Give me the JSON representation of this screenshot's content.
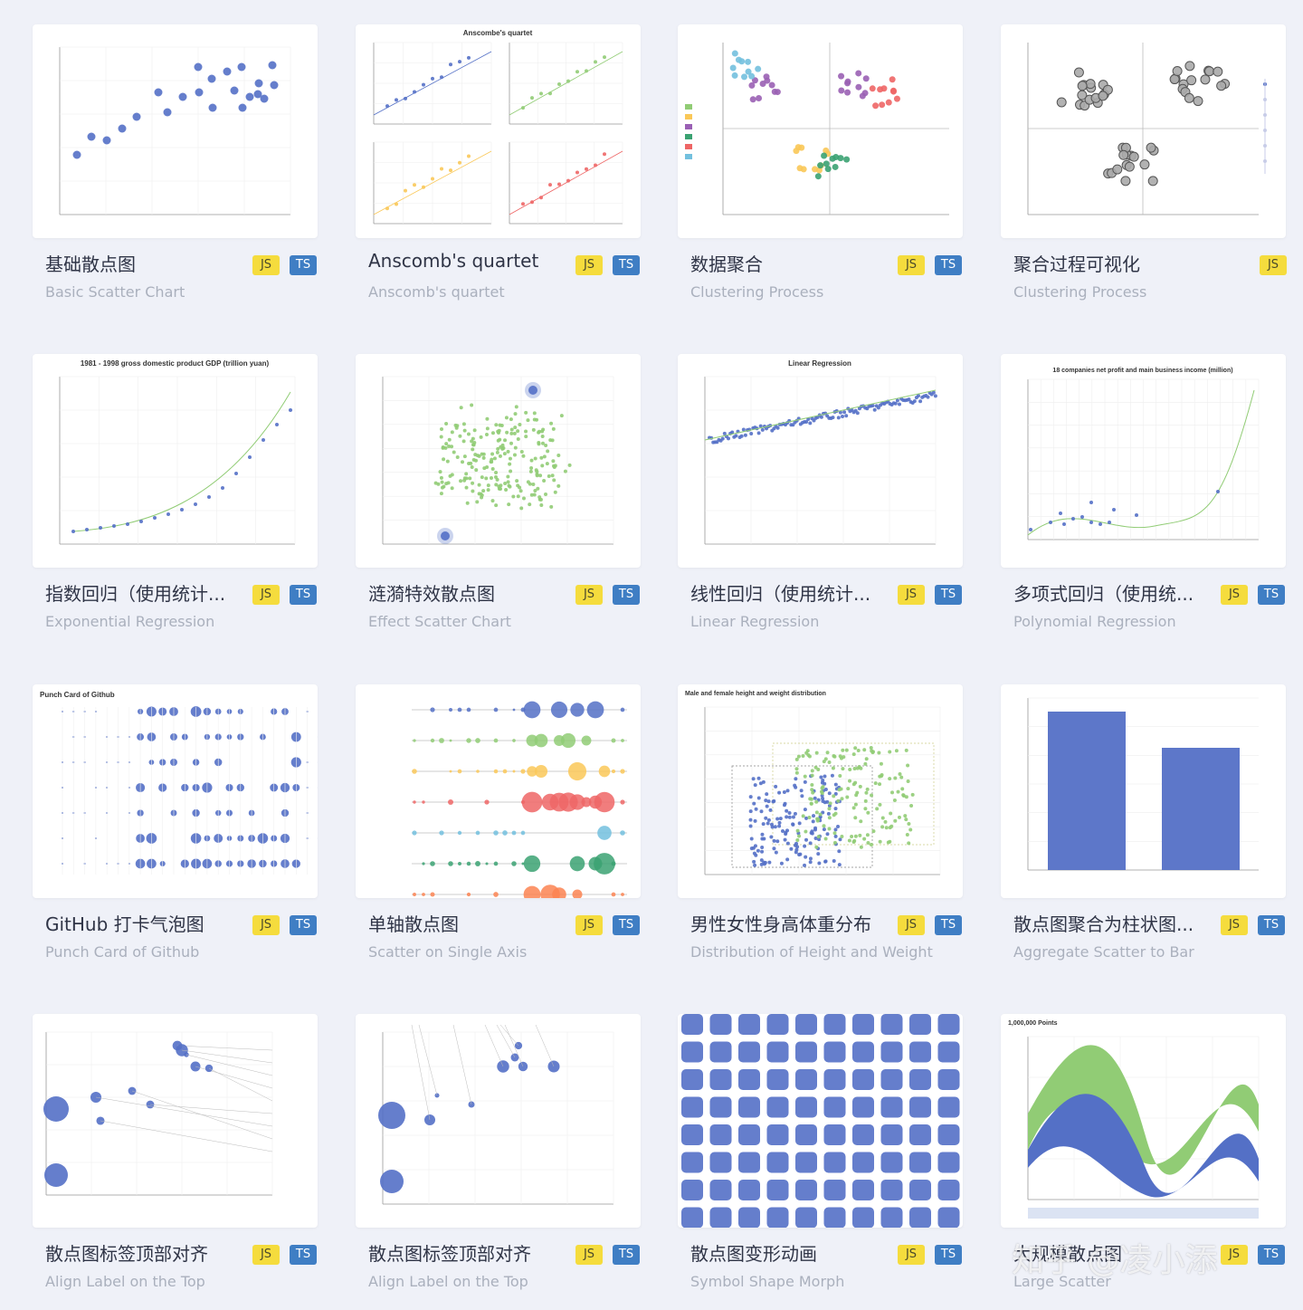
{
  "cards": [
    {
      "title": "基础散点图",
      "subtitle": "Basic Scatter Chart",
      "js": "JS",
      "ts": "TS",
      "chart_title": ""
    },
    {
      "title": "Anscomb's quartet",
      "subtitle": "Anscomb's quartet",
      "js": "JS",
      "ts": "TS",
      "chart_title": "Anscombe's quartet"
    },
    {
      "title": "数据聚合",
      "subtitle": "Clustering Process",
      "js": "JS",
      "ts": "TS",
      "chart_title": ""
    },
    {
      "title": "聚合过程可视化",
      "subtitle": "Clustering Process",
      "js": "JS",
      "ts": "",
      "chart_title": ""
    },
    {
      "title": "指数回归（使用统计...",
      "subtitle": "Exponential Regression",
      "js": "JS",
      "ts": "TS",
      "chart_title": "1981 - 1998 gross domestic product GDP (trillion yuan)"
    },
    {
      "title": "涟漪特效散点图",
      "subtitle": "Effect Scatter Chart",
      "js": "JS",
      "ts": "TS",
      "chart_title": ""
    },
    {
      "title": "线性回归（使用统计...",
      "subtitle": "Linear Regression",
      "js": "JS",
      "ts": "TS",
      "chart_title": "Linear Regression"
    },
    {
      "title": "多项式回归（使用统...",
      "subtitle": "Polynomial Regression",
      "js": "JS",
      "ts": "TS",
      "chart_title": "18 companies net profit and main business income (million)"
    },
    {
      "title": "GitHub 打卡气泡图",
      "subtitle": "Punch Card of Github",
      "js": "JS",
      "ts": "TS",
      "chart_title": "Punch Card of Github"
    },
    {
      "title": "单轴散点图",
      "subtitle": "Scatter on Single Axis",
      "js": "JS",
      "ts": "TS",
      "chart_title": ""
    },
    {
      "title": "男性女性身高体重分布",
      "subtitle": "Distribution of Height and Weight",
      "js": "JS",
      "ts": "TS",
      "chart_title": "Male and female height and weight distribution"
    },
    {
      "title": "散点图聚合为柱状图...",
      "subtitle": "Aggregate Scatter to Bar",
      "js": "JS",
      "ts": "TS",
      "chart_title": ""
    },
    {
      "title": "散点图标签顶部对齐",
      "subtitle": "Align Label on the Top",
      "js": "JS",
      "ts": "TS",
      "chart_title": ""
    },
    {
      "title": "散点图标签顶部对齐",
      "subtitle": "Align Label on the Top",
      "js": "JS",
      "ts": "TS",
      "chart_title": ""
    },
    {
      "title": "散点图变形动画",
      "subtitle": "Symbol Shape Morph",
      "js": "JS",
      "ts": "TS",
      "chart_title": ""
    },
    {
      "title": "大规模散点图",
      "subtitle": "Large Scatter",
      "js": "JS",
      "ts": "TS",
      "chart_title": "1,000,000 Points"
    }
  ],
  "watermark": "知乎 @凌小添",
  "colors": {
    "accent": "#5470c6",
    "green": "#91cc75",
    "yellow": "#fac858",
    "red": "#ee6666",
    "cyan": "#73c0de",
    "teal": "#3ba272",
    "orange": "#fc8452",
    "purple": "#9a60b4",
    "js_badge": "#f5dc3d",
    "ts_badge": "#3f7ec4"
  }
}
